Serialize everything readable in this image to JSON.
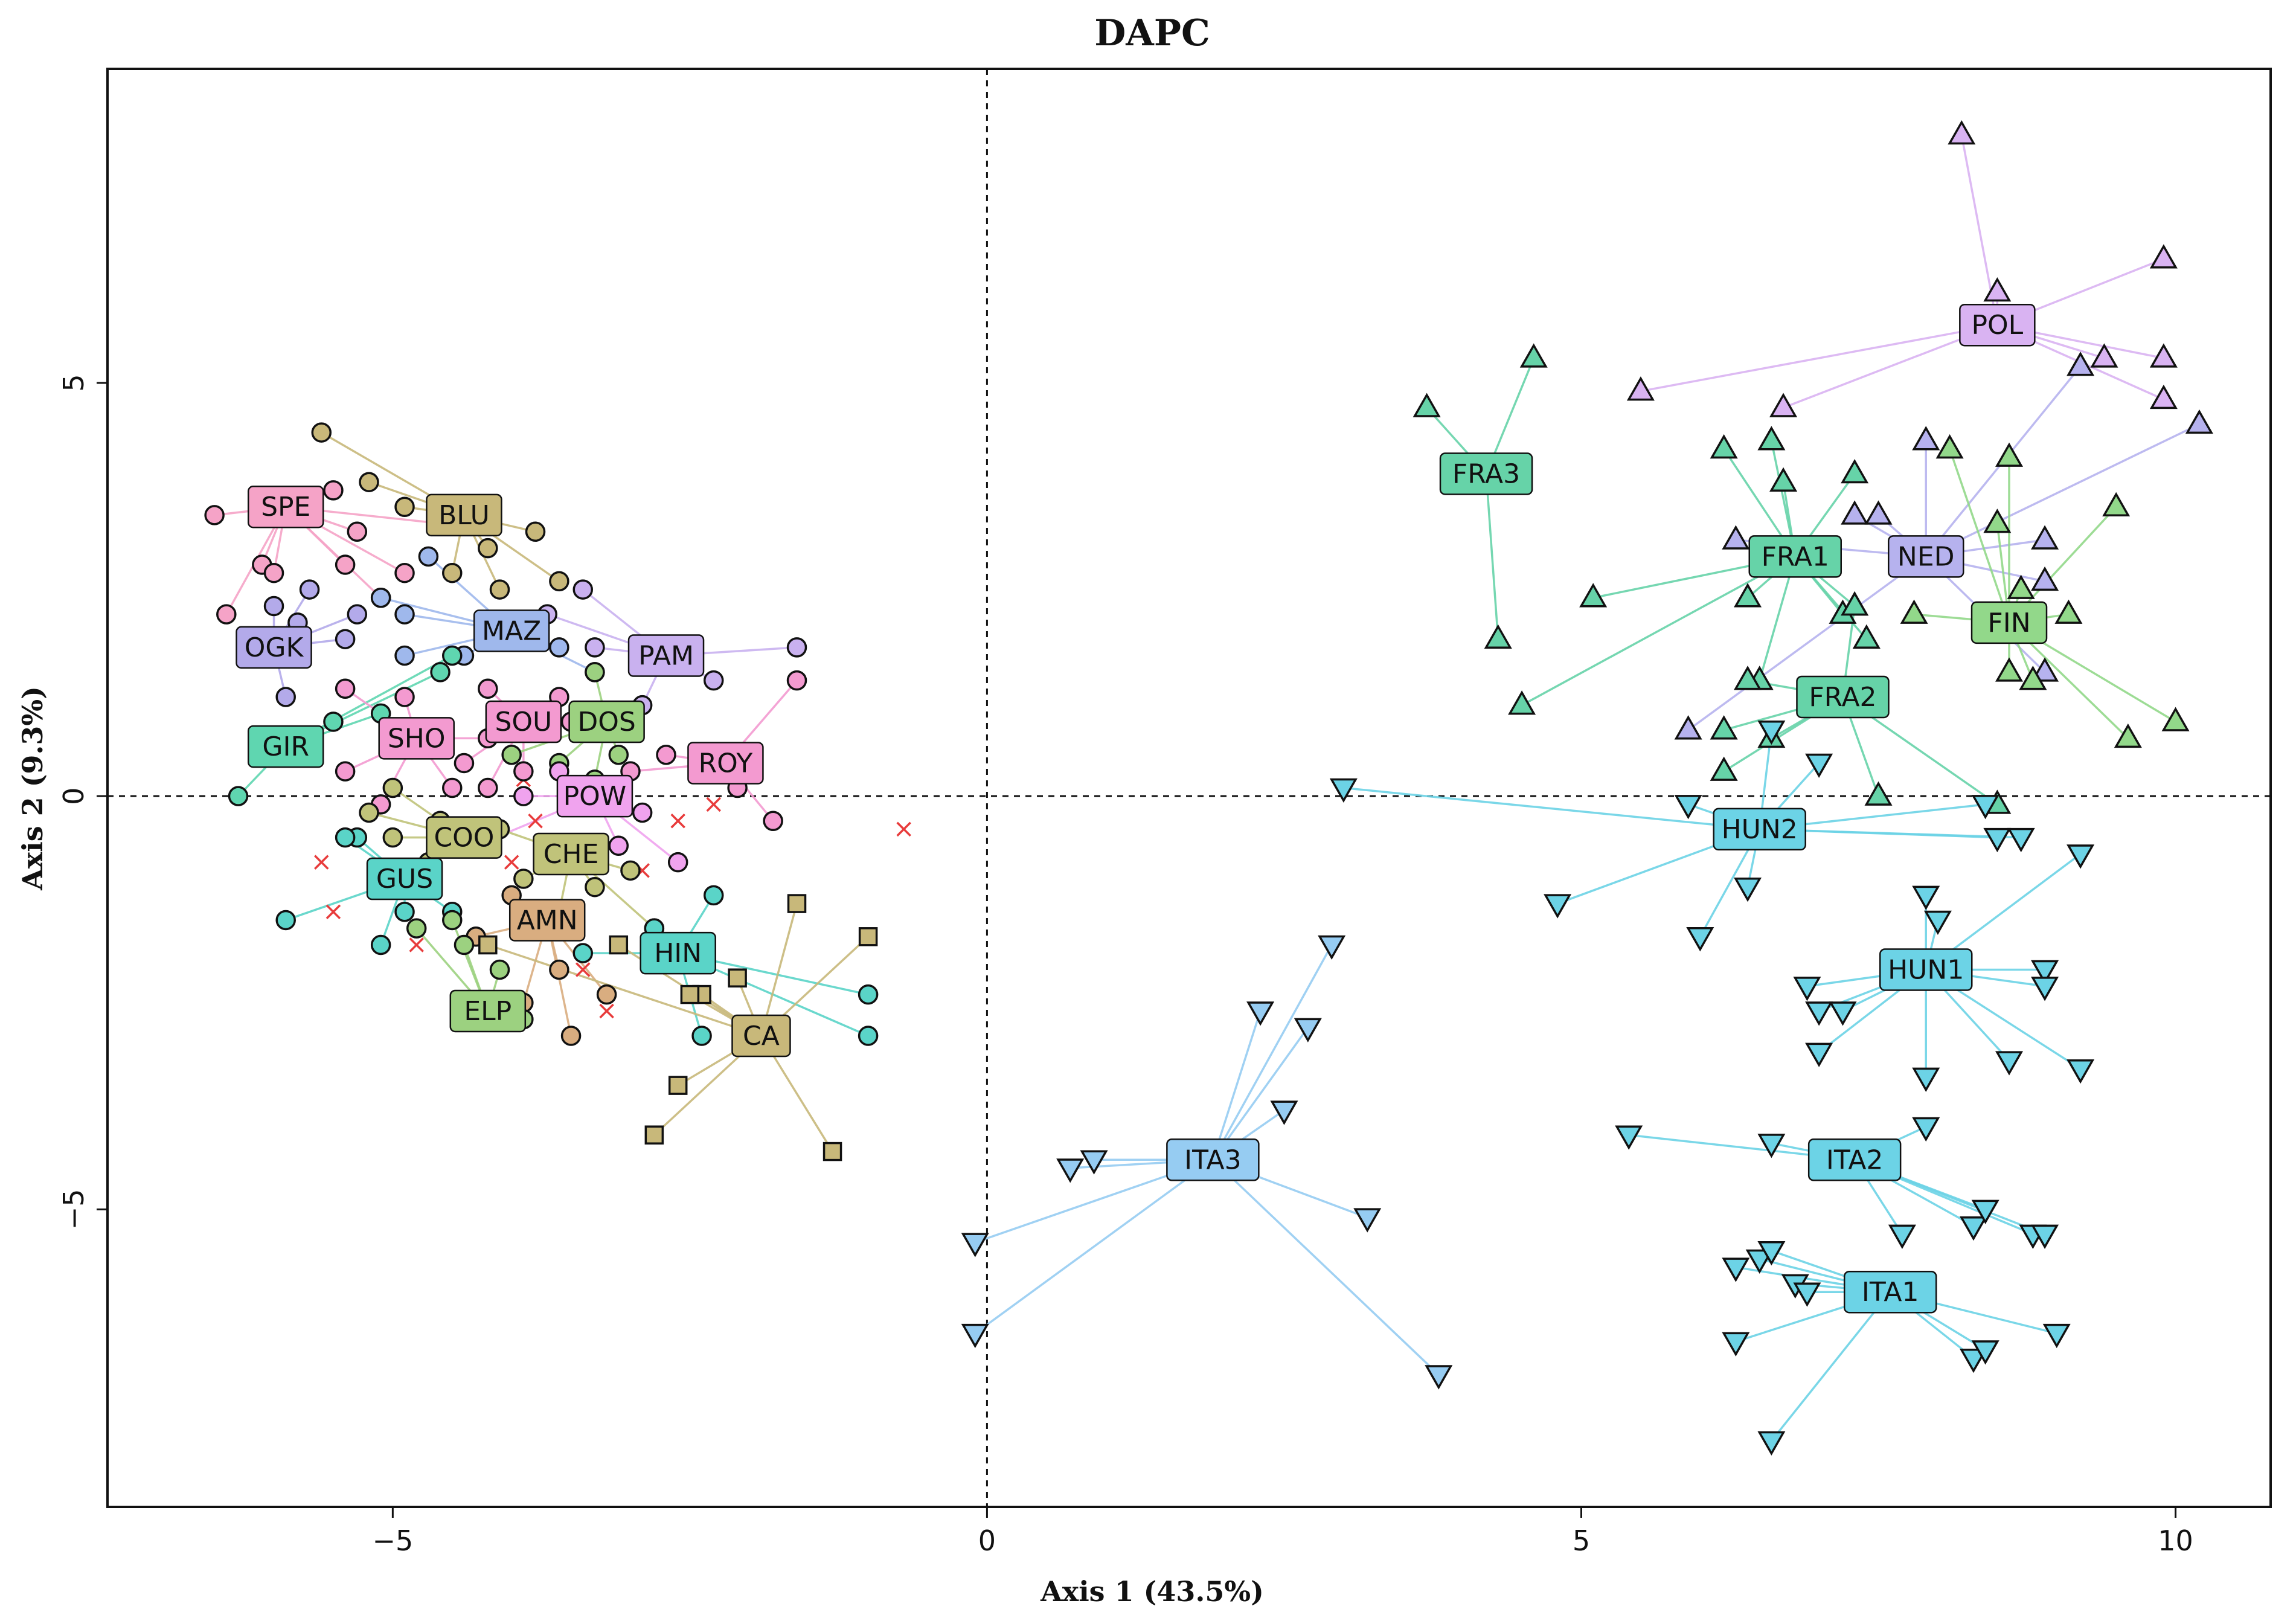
{
  "chart_data": {
    "type": "scatter",
    "title": "DAPC",
    "xlabel": "Axis 1 (43.5%)",
    "ylabel": "Axis 2 (9.3%)",
    "xlim": [
      -7.4,
      10.8
    ],
    "ylim": [
      -8.6,
      8.8
    ],
    "xticks": [
      -5,
      0,
      5,
      10
    ],
    "yticks": [
      -5,
      0,
      5
    ],
    "x_tick_labels": [
      "−5",
      "0",
      "5",
      "10"
    ],
    "y_tick_labels": [
      "−5",
      "0",
      "5"
    ],
    "reference_lines": {
      "x": 0,
      "y": 0,
      "style": "dashed"
    },
    "grid": false,
    "legend": "none",
    "colors": {
      "SPE": "#f5a3c7",
      "BLU": "#c8b87a",
      "MAZ": "#9fb8ec",
      "OGK": "#b3aaea",
      "PAM": "#c9b1ef",
      "GIR": "#5fd6b0",
      "SHO": "#f39ad0",
      "SOU": "#f39ad0",
      "DOS": "#9cd180",
      "ROY": "#f39ad0",
      "POW": "#f0a3ee",
      "COO": "#c0c37a",
      "CHE": "#c0c37a",
      "GUS": "#5ad4c8",
      "AMN": "#d9ad80",
      "HIN": "#5ad4c8",
      "ELP": "#9cd180",
      "CA": "#c8b87a",
      "FRA3": "#66d3a8",
      "FRA1": "#66d3a8",
      "FRA2": "#66d3a8",
      "NED": "#b6b2ee",
      "FIN": "#92d88a",
      "POL": "#d9b3f2",
      "HUN2": "#6cd3e6",
      "HUN1": "#6cd3e6",
      "ITA2": "#6cd3e6",
      "ITA1": "#6cd3e6",
      "ITA3": "#96ccf2",
      "cross": "#e83b3b",
      "axis": "#111111"
    },
    "groups": [
      {
        "name": "SPE",
        "center": [
          -5.9,
          3.5
        ],
        "shape": "circle",
        "points": [
          [
            -6.5,
            3.4
          ],
          [
            -6.1,
            2.8
          ],
          [
            -6.4,
            2.2
          ],
          [
            -5.5,
            3.7
          ],
          [
            -5.3,
            3.2
          ],
          [
            -5.4,
            2.8
          ],
          [
            -6.0,
            2.7
          ],
          [
            -4.6,
            3.3
          ],
          [
            -5.1,
            2.4
          ],
          [
            -4.9,
            2.7
          ]
        ]
      },
      {
        "name": "BLU",
        "center": [
          -4.4,
          3.4
        ],
        "shape": "circle",
        "points": [
          [
            -5.6,
            4.4
          ],
          [
            -5.2,
            3.8
          ],
          [
            -4.9,
            3.5
          ],
          [
            -4.2,
            3.0
          ],
          [
            -3.8,
            3.2
          ],
          [
            -4.5,
            2.7
          ],
          [
            -3.6,
            2.6
          ],
          [
            -4.1,
            2.5
          ]
        ]
      },
      {
        "name": "MAZ",
        "center": [
          -4.0,
          2.0
        ],
        "shape": "circle",
        "points": [
          [
            -4.7,
            2.9
          ],
          [
            -4.9,
            1.7
          ],
          [
            -4.4,
            1.7
          ],
          [
            -3.6,
            1.8
          ],
          [
            -3.3,
            1.5
          ],
          [
            -4.9,
            2.2
          ],
          [
            -5.1,
            2.4
          ]
        ]
      },
      {
        "name": "OGK",
        "center": [
          -6.0,
          1.8
        ],
        "shape": "circle",
        "points": [
          [
            -5.7,
            2.5
          ],
          [
            -5.8,
            2.1
          ],
          [
            -5.3,
            2.2
          ],
          [
            -6.0,
            2.3
          ],
          [
            -5.9,
            1.2
          ],
          [
            -5.4,
            1.9
          ]
        ]
      },
      {
        "name": "PAM",
        "center": [
          -2.7,
          1.7
        ],
        "shape": "circle",
        "points": [
          [
            -1.6,
            1.8
          ],
          [
            -2.3,
            1.4
          ],
          [
            -3.4,
            2.5
          ],
          [
            -2.9,
            1.1
          ],
          [
            -3.3,
            1.8
          ],
          [
            -3.7,
            2.2
          ]
        ]
      },
      {
        "name": "GIR",
        "center": [
          -5.9,
          0.6
        ],
        "shape": "circle",
        "points": [
          [
            -6.3,
            0.0
          ],
          [
            -5.5,
            0.9
          ],
          [
            -5.1,
            1.0
          ],
          [
            -4.6,
            1.5
          ],
          [
            -4.5,
            1.7
          ]
        ]
      },
      {
        "name": "SHO",
        "center": [
          -4.8,
          0.7
        ],
        "shape": "circle",
        "points": [
          [
            -5.4,
            0.3
          ],
          [
            -5.1,
            -0.1
          ],
          [
            -4.5,
            0.1
          ],
          [
            -4.2,
            0.7
          ],
          [
            -4.9,
            1.2
          ],
          [
            -5.4,
            1.3
          ]
        ]
      },
      {
        "name": "SOU",
        "center": [
          -3.9,
          0.9
        ],
        "shape": "circle",
        "points": [
          [
            -4.2,
            1.3
          ],
          [
            -3.6,
            1.2
          ],
          [
            -4.4,
            0.4
          ],
          [
            -3.9,
            0.3
          ],
          [
            -4.2,
            0.1
          ],
          [
            -3.5,
            0.9
          ]
        ]
      },
      {
        "name": "DOS",
        "center": [
          -3.2,
          0.9
        ],
        "shape": "circle",
        "points": [
          [
            -3.3,
            1.5
          ],
          [
            -3.1,
            0.5
          ],
          [
            -3.6,
            0.4
          ],
          [
            -4.0,
            0.5
          ],
          [
            -3.3,
            0.2
          ]
        ]
      },
      {
        "name": "ROY",
        "center": [
          -2.2,
          0.4
        ],
        "shape": "circle",
        "points": [
          [
            -1.6,
            1.4
          ],
          [
            -2.7,
            0.5
          ],
          [
            -2.1,
            0.1
          ],
          [
            -1.8,
            -0.3
          ],
          [
            -3.0,
            0.3
          ]
        ]
      },
      {
        "name": "POW",
        "center": [
          -3.3,
          0.0
        ],
        "shape": "circle",
        "points": [
          [
            -3.6,
            0.3
          ],
          [
            -3.9,
            0.0
          ],
          [
            -2.6,
            -0.8
          ],
          [
            -2.9,
            -0.2
          ],
          [
            -3.1,
            -0.6
          ],
          [
            -4.3,
            -0.6
          ]
        ]
      },
      {
        "name": "COO",
        "center": [
          -4.4,
          -0.5
        ],
        "shape": "circle",
        "points": [
          [
            -5.0,
            -0.5
          ],
          [
            -4.7,
            -0.8
          ],
          [
            -4.6,
            -0.3
          ],
          [
            -5.2,
            -0.2
          ],
          [
            -4.9,
            -1.1
          ],
          [
            -5.0,
            0.1
          ]
        ]
      },
      {
        "name": "CHE",
        "center": [
          -3.5,
          -0.7
        ],
        "shape": "circle",
        "points": [
          [
            -4.1,
            -0.4
          ],
          [
            -3.9,
            -1.0
          ],
          [
            -3.3,
            -1.1
          ],
          [
            -3.0,
            -0.9
          ],
          [
            -2.8,
            -1.6
          ],
          [
            -3.6,
            -1.4
          ]
        ]
      },
      {
        "name": "GUS",
        "center": [
          -4.9,
          -1.0
        ],
        "shape": "circle",
        "points": [
          [
            -5.9,
            -1.5
          ],
          [
            -5.1,
            -1.8
          ],
          [
            -5.3,
            -0.5
          ],
          [
            -4.5,
            -1.4
          ],
          [
            -4.9,
            -1.4
          ],
          [
            -5.4,
            -0.5
          ]
        ]
      },
      {
        "name": "AMN",
        "center": [
          -3.7,
          -1.5
        ],
        "shape": "circle",
        "points": [
          [
            -4.0,
            -1.2
          ],
          [
            -3.6,
            -2.1
          ],
          [
            -3.2,
            -2.4
          ],
          [
            -3.5,
            -2.9
          ],
          [
            -3.9,
            -2.5
          ],
          [
            -4.3,
            -1.7
          ]
        ]
      },
      {
        "name": "HIN",
        "center": [
          -2.6,
          -1.9
        ],
        "shape": "circle",
        "points": [
          [
            -1.0,
            -2.4
          ],
          [
            -1.0,
            -2.9
          ],
          [
            -2.3,
            -1.2
          ],
          [
            -2.8,
            -1.6
          ],
          [
            -3.4,
            -1.9
          ],
          [
            -2.4,
            -2.9
          ]
        ]
      },
      {
        "name": "ELP",
        "center": [
          -4.2,
          -2.6
        ],
        "shape": "circle",
        "points": [
          [
            -4.5,
            -1.5
          ],
          [
            -4.1,
            -2.1
          ],
          [
            -3.9,
            -2.7
          ],
          [
            -4.0,
            -2.5
          ],
          [
            -4.4,
            -1.8
          ],
          [
            -4.8,
            -1.6
          ]
        ]
      },
      {
        "name": "CA",
        "center": [
          -1.9,
          -2.9
        ],
        "shape": "square",
        "points": [
          [
            -1.6,
            -1.3
          ],
          [
            -1.0,
            -1.7
          ],
          [
            -2.1,
            -2.2
          ],
          [
            -2.4,
            -2.4
          ],
          [
            -2.5,
            -2.4
          ],
          [
            -2.6,
            -3.5
          ],
          [
            -2.8,
            -4.1
          ],
          [
            -1.3,
            -4.3
          ],
          [
            -3.1,
            -1.8
          ],
          [
            -4.2,
            -1.8
          ]
        ]
      },
      {
        "name": "FRA3",
        "center": [
          4.2,
          3.9
        ],
        "shape": "triangle-up",
        "points": [
          [
            3.7,
            4.7
          ],
          [
            4.6,
            5.3
          ],
          [
            4.3,
            1.9
          ]
        ]
      },
      {
        "name": "FRA1",
        "center": [
          6.8,
          2.9
        ],
        "shape": "triangle-up",
        "points": [
          [
            6.2,
            4.2
          ],
          [
            6.6,
            4.3
          ],
          [
            6.7,
            3.8
          ],
          [
            5.1,
            2.4
          ],
          [
            6.4,
            2.4
          ],
          [
            6.5,
            1.4
          ],
          [
            7.3,
            2.3
          ],
          [
            7.2,
            2.2
          ],
          [
            7.3,
            3.9
          ],
          [
            7.4,
            1.9
          ],
          [
            4.5,
            1.1
          ]
        ]
      },
      {
        "name": "FRA2",
        "center": [
          7.2,
          1.2
        ],
        "shape": "triangle-up",
        "points": [
          [
            6.2,
            0.3
          ],
          [
            6.2,
            0.8
          ],
          [
            6.6,
            0.7
          ],
          [
            7.3,
            2.3
          ],
          [
            7.5,
            -0.0
          ],
          [
            8.5,
            -0.1
          ],
          [
            6.4,
            1.4
          ]
        ]
      },
      {
        "name": "NED",
        "center": [
          7.9,
          2.9
        ],
        "shape": "triangle-up",
        "points": [
          [
            5.9,
            0.8
          ],
          [
            6.3,
            3.1
          ],
          [
            7.3,
            3.4
          ],
          [
            7.5,
            3.4
          ],
          [
            7.9,
            4.3
          ],
          [
            8.9,
            3.1
          ],
          [
            8.9,
            2.6
          ],
          [
            9.2,
            5.2
          ],
          [
            10.2,
            4.5
          ],
          [
            8.9,
            1.5
          ]
        ]
      },
      {
        "name": "FIN",
        "center": [
          8.6,
          2.1
        ],
        "shape": "triangle-up",
        "points": [
          [
            8.6,
            4.1
          ],
          [
            8.1,
            4.2
          ],
          [
            9.5,
            3.5
          ],
          [
            9.1,
            2.2
          ],
          [
            8.6,
            1.5
          ],
          [
            9.6,
            0.7
          ],
          [
            10.0,
            0.9
          ],
          [
            8.8,
            1.4
          ],
          [
            7.8,
            2.2
          ],
          [
            8.7,
            2.5
          ],
          [
            8.5,
            3.3
          ]
        ]
      },
      {
        "name": "POL",
        "center": [
          8.5,
          5.7
        ],
        "shape": "triangle-up",
        "points": [
          [
            8.2,
            8.0
          ],
          [
            8.5,
            6.1
          ],
          [
            9.9,
            6.5
          ],
          [
            9.9,
            5.3
          ],
          [
            9.9,
            4.8
          ],
          [
            9.4,
            5.3
          ],
          [
            5.5,
            4.9
          ],
          [
            6.7,
            4.7
          ]
        ]
      },
      {
        "name": "HUN2",
        "center": [
          6.5,
          -0.4
        ],
        "shape": "triangle-down",
        "points": [
          [
            3.0,
            0.1
          ],
          [
            4.8,
            -1.3
          ],
          [
            5.9,
            -0.1
          ],
          [
            6.0,
            -1.7
          ],
          [
            6.4,
            -1.1
          ],
          [
            6.6,
            0.8
          ],
          [
            7.0,
            0.4
          ],
          [
            8.4,
            -0.1
          ],
          [
            8.5,
            -0.5
          ],
          [
            8.7,
            -0.5
          ]
        ]
      },
      {
        "name": "HUN1",
        "center": [
          7.9,
          -2.1
        ],
        "shape": "triangle-down",
        "points": [
          [
            7.9,
            -1.2
          ],
          [
            8.0,
            -1.5
          ],
          [
            9.2,
            -0.7
          ],
          [
            8.9,
            -2.1
          ],
          [
            8.9,
            -2.3
          ],
          [
            9.2,
            -3.3
          ],
          [
            8.6,
            -3.2
          ],
          [
            7.9,
            -3.4
          ],
          [
            7.2,
            -2.6
          ],
          [
            6.9,
            -2.3
          ],
          [
            7.0,
            -2.6
          ],
          [
            7.0,
            -3.1
          ]
        ]
      },
      {
        "name": "ITA2",
        "center": [
          7.3,
          -4.4
        ],
        "shape": "triangle-down",
        "points": [
          [
            5.4,
            -4.1
          ],
          [
            6.6,
            -4.2
          ],
          [
            7.9,
            -4.0
          ],
          [
            7.7,
            -5.3
          ],
          [
            8.3,
            -5.2
          ],
          [
            8.4,
            -5.0
          ],
          [
            8.8,
            -5.3
          ],
          [
            8.9,
            -5.3
          ]
        ]
      },
      {
        "name": "ITA1",
        "center": [
          7.6,
          -6.0
        ],
        "shape": "triangle-down",
        "points": [
          [
            6.3,
            -5.7
          ],
          [
            6.5,
            -5.6
          ],
          [
            6.6,
            -5.5
          ],
          [
            6.8,
            -5.9
          ],
          [
            6.3,
            -6.6
          ],
          [
            6.6,
            -7.8
          ],
          [
            8.3,
            -6.8
          ],
          [
            8.4,
            -6.7
          ],
          [
            9.0,
            -6.5
          ],
          [
            6.9,
            -6.0
          ]
        ]
      },
      {
        "name": "ITA3",
        "center": [
          1.9,
          -4.4
        ],
        "shape": "triangle-down",
        "points": [
          [
            -0.1,
            -5.4
          ],
          [
            -0.1,
            -6.5
          ],
          [
            0.7,
            -4.5
          ],
          [
            0.9,
            -4.4
          ],
          [
            2.3,
            -2.6
          ],
          [
            2.7,
            -2.8
          ],
          [
            2.9,
            -1.8
          ],
          [
            2.5,
            -3.8
          ],
          [
            3.2,
            -5.1
          ],
          [
            3.8,
            -7.0
          ]
        ]
      }
    ],
    "crosses": [
      [
        -5.6,
        -0.8
      ],
      [
        -5.5,
        -1.4
      ],
      [
        -4.8,
        -1.8
      ],
      [
        -4.0,
        -0.8
      ],
      [
        -3.8,
        -0.3
      ],
      [
        -3.9,
        0.2
      ],
      [
        -3.4,
        -2.1
      ],
      [
        -3.2,
        -2.6
      ],
      [
        -2.9,
        -0.9
      ],
      [
        -2.6,
        -0.3
      ],
      [
        -2.3,
        -0.1
      ],
      [
        -0.7,
        -0.4
      ]
    ]
  }
}
